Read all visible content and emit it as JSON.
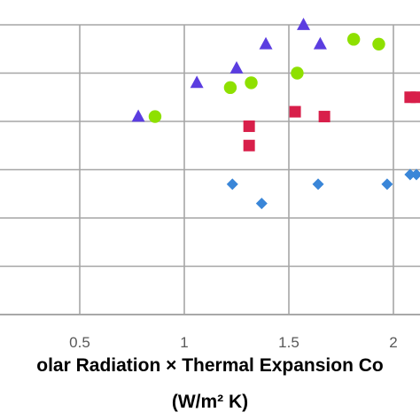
{
  "chart_data": {
    "type": "scatter",
    "title": "",
    "xlabel": "olar Radiation × Thermal Expansion Co",
    "xlabel_unit": "(W/m² K)",
    "ylabel": "",
    "xlim": [
      0.5,
      2.2
    ],
    "x_ticks": [
      0.5,
      1,
      1.5,
      2
    ],
    "x_tick_labels": [
      "0.5",
      "1",
      "1.5",
      "2"
    ],
    "y_gridlines": 7,
    "grid": true,
    "legend": "none",
    "series": [
      {
        "marker": "triangle",
        "color": "#5b3de0",
        "points": [
          {
            "x": 0.78,
            "y": 5.6
          },
          {
            "x": 1.06,
            "y": 6.3
          },
          {
            "x": 1.25,
            "y": 6.6
          },
          {
            "x": 1.39,
            "y": 7.1
          },
          {
            "x": 1.57,
            "y": 7.5
          },
          {
            "x": 1.65,
            "y": 7.1
          }
        ]
      },
      {
        "marker": "circle",
        "color": "#8ee000",
        "points": [
          {
            "x": 0.86,
            "y": 5.6
          },
          {
            "x": 1.22,
            "y": 6.2
          },
          {
            "x": 1.32,
            "y": 6.3
          },
          {
            "x": 1.54,
            "y": 6.5
          },
          {
            "x": 1.81,
            "y": 7.2
          },
          {
            "x": 1.93,
            "y": 7.1
          }
        ]
      },
      {
        "marker": "square",
        "color": "#d81f4a",
        "points": [
          {
            "x": 1.53,
            "y": 5.7
          },
          {
            "x": 1.31,
            "y": 5.4
          },
          {
            "x": 1.31,
            "y": 5.0
          },
          {
            "x": 1.67,
            "y": 5.6
          },
          {
            "x": 2.08,
            "y": 6.0
          },
          {
            "x": 2.11,
            "y": 6.0
          }
        ]
      },
      {
        "marker": "diamond",
        "color": "#3a86d8",
        "points": [
          {
            "x": 1.23,
            "y": 4.2
          },
          {
            "x": 1.37,
            "y": 3.8
          },
          {
            "x": 1.64,
            "y": 4.2
          },
          {
            "x": 1.97,
            "y": 4.2
          },
          {
            "x": 2.08,
            "y": 4.4
          },
          {
            "x": 2.11,
            "y": 4.4
          }
        ]
      }
    ]
  }
}
